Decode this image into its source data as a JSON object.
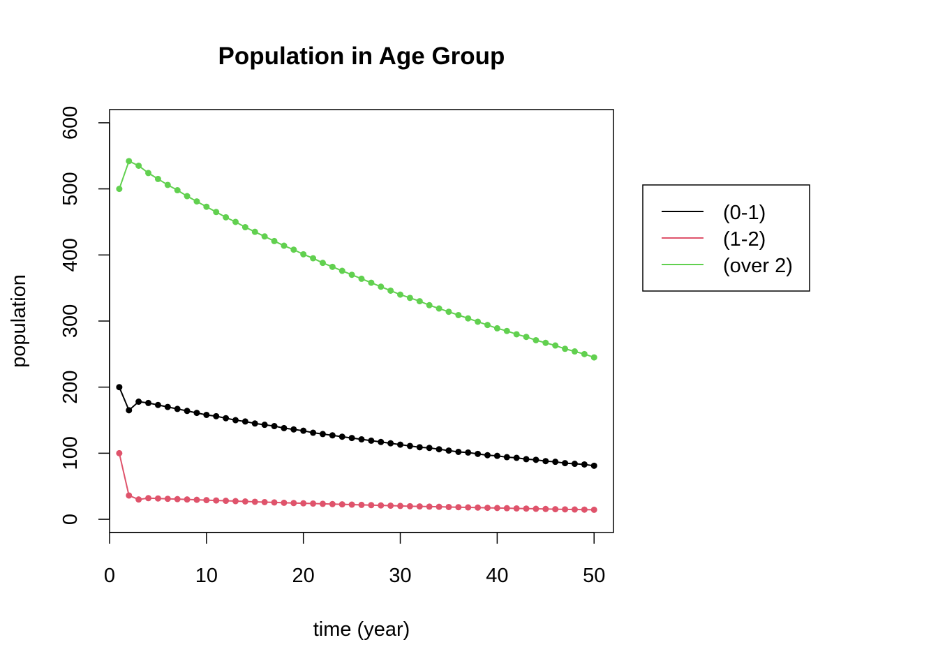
{
  "chart_data": {
    "type": "line",
    "title": "Population in Age Group",
    "xlabel": "time (year)",
    "ylabel": "population",
    "xlim": [
      0,
      52
    ],
    "ylim": [
      -20,
      620
    ],
    "x_ticks": [
      0,
      10,
      20,
      30,
      40,
      50
    ],
    "y_ticks": [
      0,
      100,
      200,
      300,
      400,
      500,
      600
    ],
    "grid": false,
    "legend_position": "right",
    "x": [
      1,
      2,
      3,
      4,
      5,
      6,
      7,
      8,
      9,
      10,
      11,
      12,
      13,
      14,
      15,
      16,
      17,
      18,
      19,
      20,
      21,
      22,
      23,
      24,
      25,
      26,
      27,
      28,
      29,
      30,
      31,
      32,
      33,
      34,
      35,
      36,
      37,
      38,
      39,
      40,
      41,
      42,
      43,
      44,
      45,
      46,
      47,
      48,
      49,
      50
    ],
    "series": [
      {
        "name": "(0-1)",
        "color": "#000000",
        "values": [
          200,
          165,
          178,
          176,
          173,
          170,
          167,
          164,
          161,
          158,
          156,
          153,
          150,
          148,
          145,
          143,
          141,
          138,
          136,
          134,
          131,
          129,
          127,
          125,
          123,
          121,
          119,
          117,
          115,
          113,
          111,
          109,
          108,
          106,
          104,
          102,
          101,
          99,
          97,
          96,
          94,
          93,
          91,
          90,
          88,
          87,
          85,
          84,
          83,
          81
        ]
      },
      {
        "name": "(1-2)",
        "color": "#DF536B",
        "values": [
          100,
          36,
          30,
          32,
          31.5,
          31,
          30.5,
          30,
          29.5,
          29,
          28.5,
          28,
          27.5,
          27,
          26.5,
          26,
          25.5,
          25,
          24.6,
          24.2,
          23.8,
          23.4,
          23,
          22.6,
          22.2,
          21.8,
          21.4,
          21,
          20.6,
          20.2,
          19.8,
          19.5,
          19.2,
          18.9,
          18.6,
          18.3,
          18,
          17.7,
          17.4,
          17.1,
          16.8,
          16.5,
          16.2,
          15.9,
          15.6,
          15.3,
          15,
          14.8,
          14.6,
          14.4
        ]
      },
      {
        "name": "(over 2)",
        "color": "#61D04F",
        "values": [
          500,
          542,
          535,
          524,
          515,
          506,
          498,
          489,
          481,
          473,
          465,
          457,
          450,
          442,
          435,
          428,
          421,
          414,
          408,
          401,
          395,
          388,
          382,
          376,
          370,
          364,
          358,
          352,
          346,
          340,
          335,
          330,
          324,
          319,
          314,
          309,
          304,
          299,
          294,
          289,
          285,
          280,
          276,
          271,
          267,
          263,
          258,
          254,
          250,
          245
        ]
      }
    ]
  }
}
